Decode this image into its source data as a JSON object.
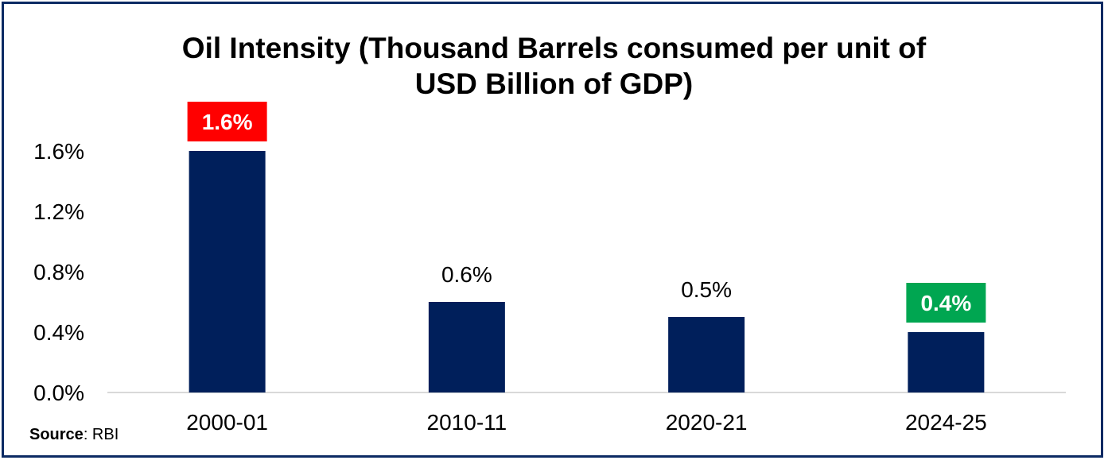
{
  "chart_data": {
    "type": "bar",
    "title_line1": "Oil Intensity (Thousand Barrels consumed per unit of",
    "title_line2": "USD Billion of GDP)",
    "categories": [
      "2000-01",
      "2010-11",
      "2020-21",
      "2024-25"
    ],
    "values": [
      1.6,
      0.6,
      0.5,
      0.4
    ],
    "data_labels": [
      "1.6%",
      "0.6%",
      "0.5%",
      "0.4%"
    ],
    "label_highlights": [
      "#ff0000",
      null,
      null,
      "#00a651"
    ],
    "ylim": [
      0,
      1.6
    ],
    "yticks": [
      "0.0%",
      "0.4%",
      "0.8%",
      "1.2%",
      "1.6%"
    ],
    "ytick_values": [
      0,
      0.4,
      0.8,
      1.2,
      1.6
    ],
    "grid": false,
    "bar_color": "#001f5b",
    "xlabel": "",
    "ylabel": ""
  },
  "source": {
    "label": "Source",
    "value": ": RBI"
  }
}
